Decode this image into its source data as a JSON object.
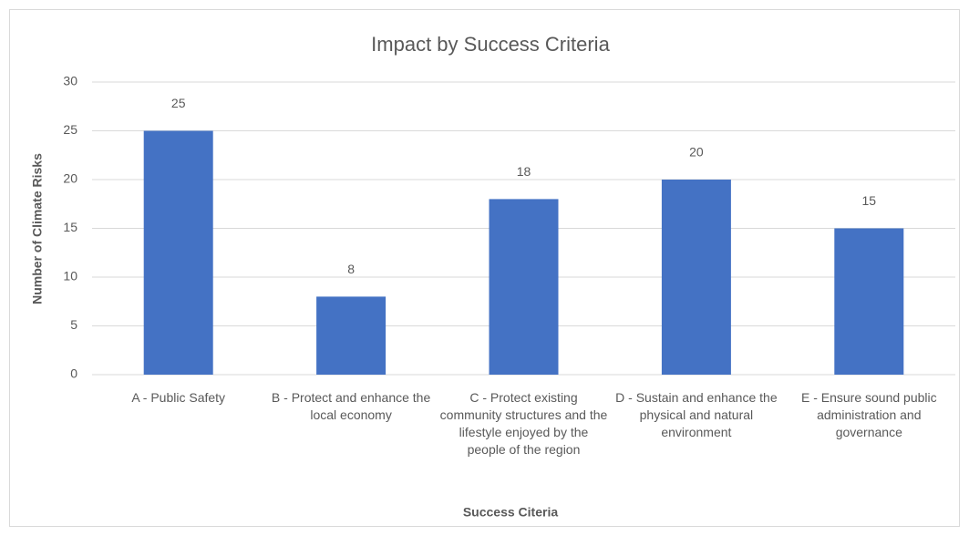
{
  "chart_data": {
    "type": "bar",
    "title": "Impact by Success Criteria",
    "x_label": "Success Citeria",
    "y_label": "Number of Climate Risks",
    "categories": [
      "A - Public Safety",
      "B - Protect and enhance the local economy",
      "C - Protect existing community structures and the lifestyle enjoyed by the people of the region",
      "D - Sustain and enhance the physical and natural environment",
      "E - Ensure sound public administration and governance"
    ],
    "values": [
      25,
      8,
      18,
      20,
      15
    ],
    "color": "#4472c4",
    "ylim": [
      0,
      30
    ],
    "yticks": [
      0,
      5,
      10,
      15,
      20,
      25,
      30
    ],
    "grid": true
  }
}
